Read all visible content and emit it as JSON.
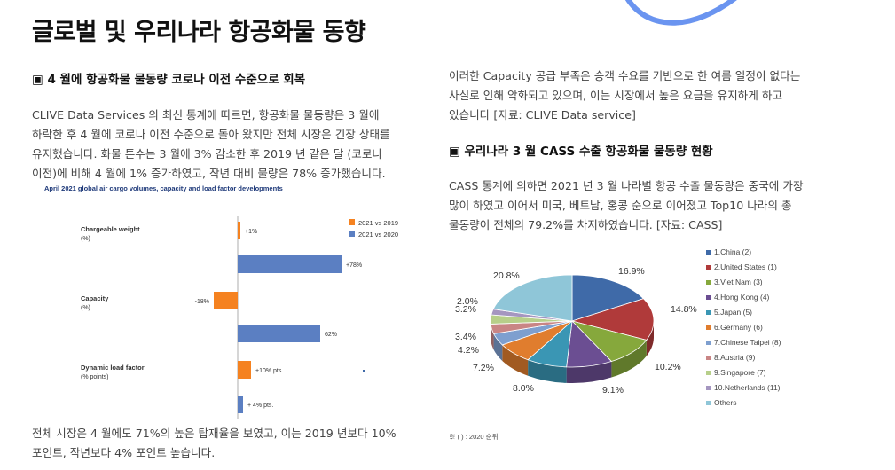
{
  "page_title": "글로벌 및 우리나라 항공화물 동향",
  "left": {
    "heading": "▣ 4 월에 항공화물 물동량 코로나 이전 수준으로 회복",
    "para1": [
      "CLIVE Data Services 의 최신 통계에 따르면, 항공화물 물동량은 3 월에",
      "하락한 후 4 월에 코로나 이전 수준으로 돌아 왔지만 전체 시장은 긴장 상태를",
      "유지했습니다. 화물 톤수는 3 월에 3% 감소한 후 2019 년 같은 달 (코로나",
      "이전)에 비해 4 월에 1% 증가하였고, 작년 대비 물량은 78% 증가했습니다."
    ],
    "para2": [
      "전체 시장은 4 월에도 71%의 높은 탑재율을 보였고, 이는 2019 년보다 10%",
      "포인트, 작년보다 4% 포인트 높습니다."
    ]
  },
  "bar_chart": {
    "title": "April 2021 global air cargo volumes, capacity and load factor developments",
    "legend": [
      "2021 vs 2019",
      "2021 vs 2020"
    ],
    "groups": [
      {
        "label": "Chargeable weight",
        "sublabel": "(%)",
        "v2019": 1,
        "v2020": 78,
        "l2019": "+1%",
        "l2020": "+78%"
      },
      {
        "label": "Capacity",
        "sublabel": "(%)",
        "v2019": -18,
        "v2020": 62,
        "l2019": "-18%",
        "l2020": "62%"
      },
      {
        "label": "Dynamic load factor",
        "sublabel": "(% points)",
        "v2019": 10,
        "v2020": 4,
        "l2019": "+10% pts.",
        "l2020": "+ 4% pts."
      }
    ],
    "colors": {
      "c2019": "#f58220",
      "c2020": "#5b7fc2"
    }
  },
  "chart_data": [
    {
      "type": "bar",
      "title": "April 2021 global air cargo volumes, capacity and load factor developments",
      "categories": [
        "Chargeable weight (%)",
        "Capacity (%)",
        "Dynamic load factor (% points)"
      ],
      "series": [
        {
          "name": "2021 vs 2019",
          "values": [
            1,
            -18,
            10
          ]
        },
        {
          "name": "2021 vs 2020",
          "values": [
            78,
            62,
            4
          ]
        }
      ],
      "legend": "top-right"
    },
    {
      "type": "pie",
      "categories": [
        "1.China (2)",
        "2.United States (1)",
        "3.Viet Nam (3)",
        "4.Hong Kong (4)",
        "5.Japan (5)",
        "6.Germany (6)",
        "7.Chinese Taipei (8)",
        "8.Austria (9)",
        "9.Singapore (7)",
        "10.Netherlands (11)",
        "Others"
      ],
      "values": [
        16.9,
        14.8,
        10.2,
        9.1,
        8.0,
        7.2,
        4.2,
        3.4,
        3.2,
        2.0,
        20.8
      ],
      "legend": "right"
    }
  ],
  "right": {
    "para1": [
      "이러한 Capacity 공급 부족은 승객 수요를 기반으로 한 여름 일정이 없다는",
      "사실로 인해 악화되고 있으며, 이는 시장에서 높은 요금을 유지하게 하고",
      "있습니다 [자료: CLIVE Data service]"
    ],
    "heading": "▣ 우리나라 3 월 CASS 수출 항공화물 물동량 현황",
    "para2": [
      "CASS 통계에 의하면 2021 년 3 월 나라별 항공 수출 물동량은 중국에 가장",
      "많이 하였고 이어서 미국, 베트남, 홍콩 순으로 이어졌고 Top10 나라의 총",
      "물동량이 전체의 79.2%를 차지하였습니다. [자료: CASS]"
    ],
    "pie_note": "※ ( ) : 2020 순위"
  },
  "pie_chart": {
    "labels": [
      "1.China (2)",
      "2.United States (1)",
      "3.Viet Nam (3)",
      "4.Hong Kong (4)",
      "5.Japan (5)",
      "6.Germany (6)",
      "7.Chinese Taipei (8)",
      "8.Austria (9)",
      "9.Singapore (7)",
      "10.Netherlands (11)",
      "Others"
    ],
    "values": [
      16.9,
      14.8,
      10.2,
      9.1,
      8.0,
      7.2,
      4.2,
      3.4,
      3.2,
      2.0,
      20.8
    ],
    "value_labels": [
      "16.9%",
      "14.8%",
      "10.2%",
      "9.1%",
      "8.0%",
      "7.2%",
      "4.2%",
      "3.4%",
      "3.2%",
      "2.0%",
      "20.8%"
    ],
    "colors": [
      "#3f6aa8",
      "#b03a3a",
      "#86a83c",
      "#6b4e92",
      "#3a96b4",
      "#e07d2e",
      "#7e9fcf",
      "#c98585",
      "#b7cf8a",
      "#a596c0",
      "#8fc6d8"
    ]
  }
}
